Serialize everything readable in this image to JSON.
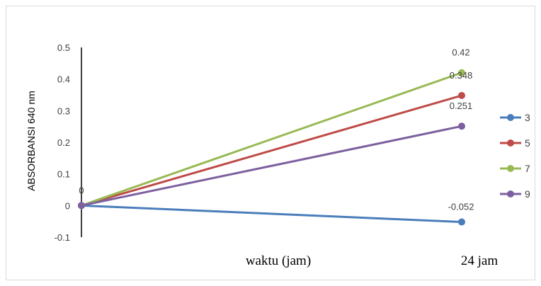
{
  "chart_data": {
    "type": "line",
    "categories": [
      "0",
      "24 jam"
    ],
    "x_category_labels": [
      "",
      "24 jam"
    ],
    "xlabel": "waktu (jam)",
    "ylabel": "ABSORBANSI 640 nm",
    "ylim": [
      -0.1,
      0.5
    ],
    "yticks": [
      "-0.1",
      "0",
      "0.1",
      "0.2",
      "0.3",
      "0.4",
      "0.5"
    ],
    "grid": false,
    "legend_position": "right",
    "series": [
      {
        "name": "3",
        "values": [
          0,
          -0.052
        ],
        "color": "#4a7ebb",
        "end_label": "-0.052"
      },
      {
        "name": "5",
        "values": [
          0,
          0.348
        ],
        "color": "#be4b48",
        "end_label": "0.348"
      },
      {
        "name": "7",
        "values": [
          0,
          0.42
        ],
        "color": "#98b954",
        "end_label": "0.42"
      },
      {
        "name": "9",
        "values": [
          0,
          0.251
        ],
        "color": "#7d60a0",
        "end_label": "0.251"
      }
    ],
    "start_label": "0"
  }
}
